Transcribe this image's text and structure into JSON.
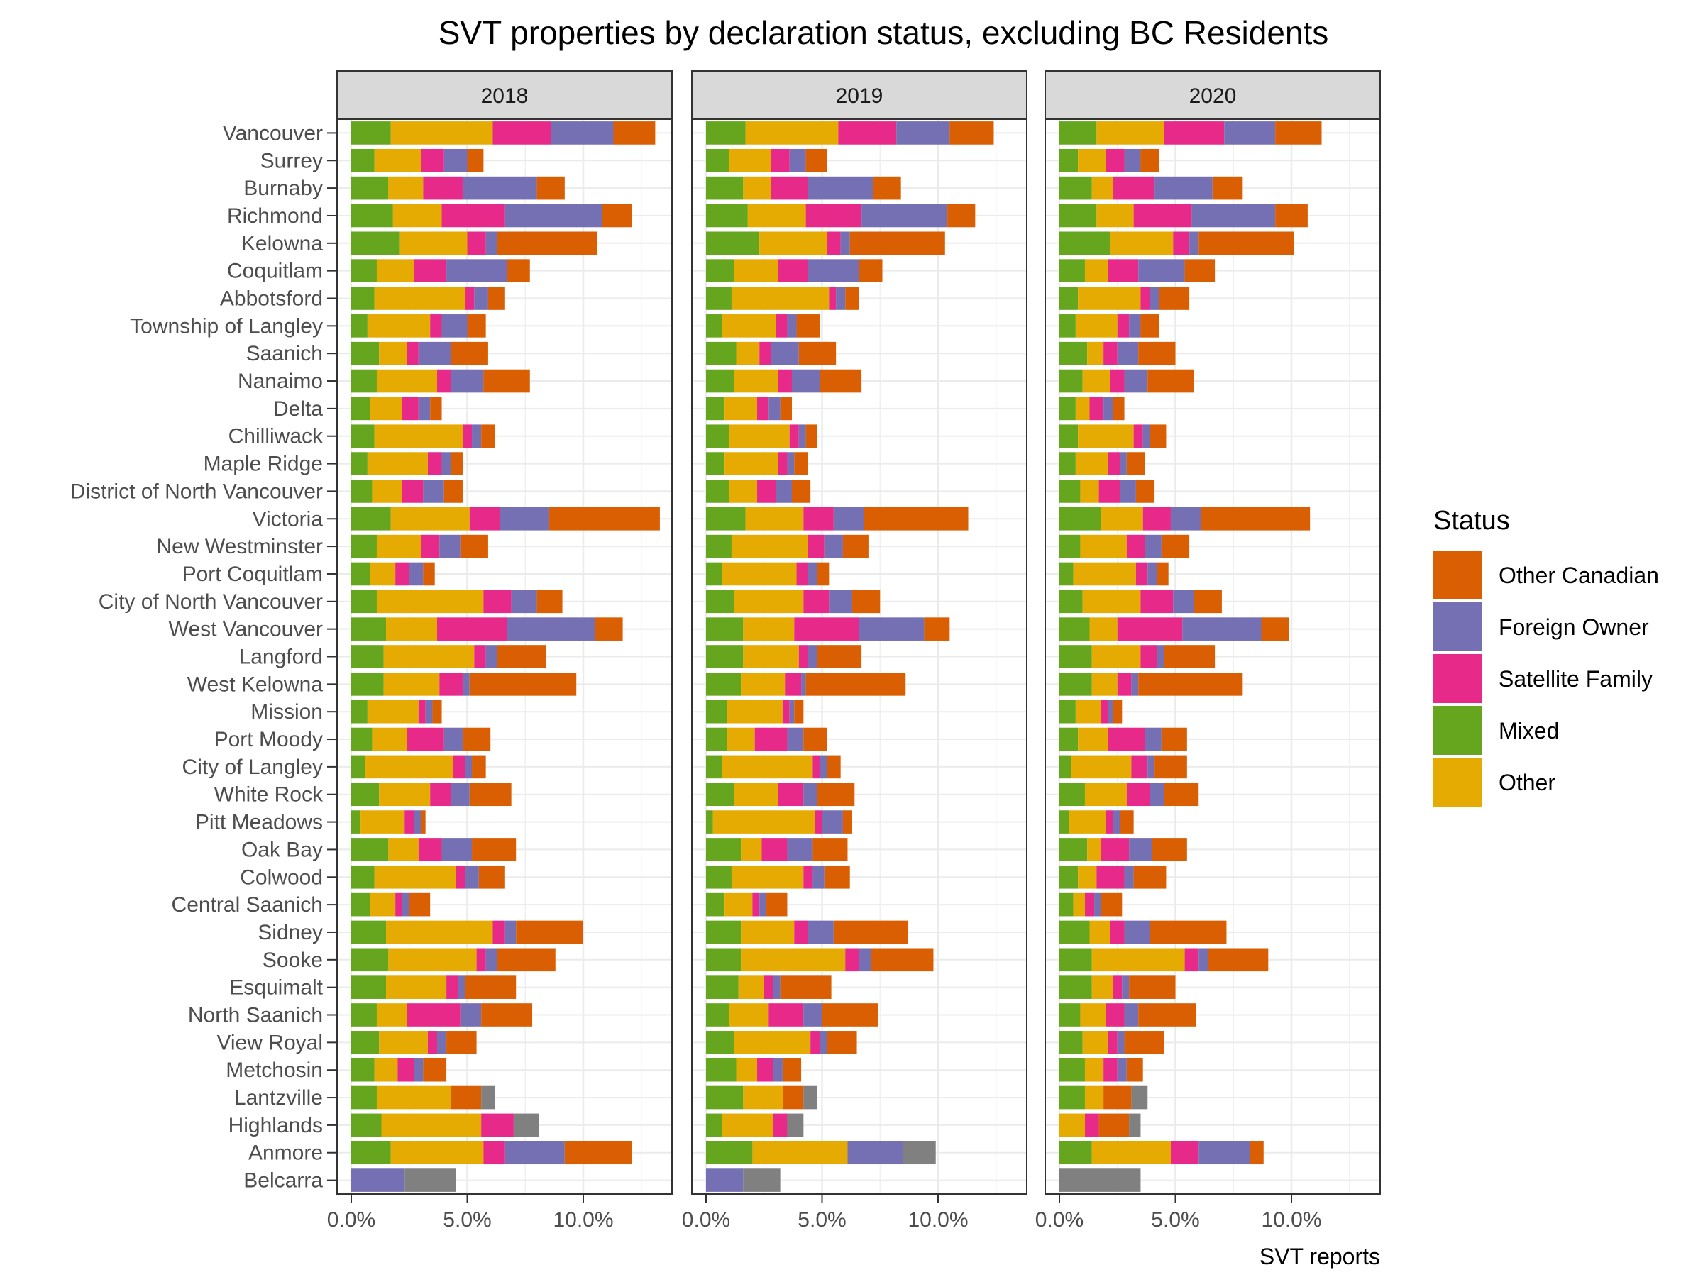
{
  "chart_data": {
    "type": "bar",
    "orientation": "horizontal",
    "stacked": true,
    "title": "SVT properties by declaration status, excluding BC Residents",
    "xlabel": "SVT reports",
    "ylabel": "",
    "xlim": [
      0,
      13.5
    ],
    "x_ticks": [
      0,
      5,
      10
    ],
    "x_tick_labels": [
      "0.0%",
      "5.0%",
      "10.0%"
    ],
    "grid": true,
    "legend": {
      "title": "Status",
      "position": "right",
      "entries": [
        "Other Canadian",
        "Foreign Owner",
        "Satellite Family",
        "Mixed",
        "Other"
      ]
    },
    "colors": {
      "Mixed": "#66a61e",
      "Other": "#e6ab02",
      "Satellite Family": "#e7298a",
      "Foreign Owner": "#7570b3",
      "Other Canadian": "#d95f02",
      "Unlabeled": "#808080"
    },
    "stack_order": [
      "Mixed",
      "Other",
      "Satellite Family",
      "Foreign Owner",
      "Other Canadian",
      "Unlabeled"
    ],
    "facets": [
      "2018",
      "2019",
      "2020"
    ],
    "categories": [
      "Vancouver",
      "Surrey",
      "Burnaby",
      "Richmond",
      "Kelowna",
      "Coquitlam",
      "Abbotsford",
      "Township of Langley",
      "Saanich",
      "Nanaimo",
      "Delta",
      "Chilliwack",
      "Maple Ridge",
      "District of North Vancouver",
      "Victoria",
      "New Westminster",
      "Port Coquitlam",
      "City of North Vancouver",
      "West Vancouver",
      "Langford",
      "West Kelowna",
      "Mission",
      "Port Moody",
      "City of Langley",
      "White Rock",
      "Pitt Meadows",
      "Oak Bay",
      "Colwood",
      "Central Saanich",
      "Sidney",
      "Sooke",
      "Esquimalt",
      "North Saanich",
      "View Royal",
      "Metchosin",
      "Lantzville",
      "Highlands",
      "Anmore",
      "Belcarra"
    ],
    "series_note": "Each row: [Mixed, Other, Satellite Family, Foreign Owner, Other Canadian, Unlabeled] in percent",
    "values": {
      "2018": [
        [
          1.7,
          4.4,
          2.5,
          2.7,
          1.8,
          0
        ],
        [
          1.0,
          2.0,
          1.0,
          1.0,
          0.7,
          0
        ],
        [
          1.6,
          1.5,
          1.7,
          3.2,
          1.2,
          0
        ],
        [
          1.8,
          2.1,
          2.7,
          4.2,
          1.3,
          0
        ],
        [
          2.1,
          2.9,
          0.8,
          0.5,
          4.3,
          0
        ],
        [
          1.1,
          1.6,
          1.4,
          2.6,
          1.0,
          0
        ],
        [
          1.0,
          3.9,
          0.4,
          0.6,
          0.7,
          0
        ],
        [
          0.7,
          2.7,
          0.5,
          1.1,
          0.8,
          0
        ],
        [
          1.2,
          1.2,
          0.5,
          1.4,
          1.6,
          0
        ],
        [
          1.1,
          2.6,
          0.6,
          1.4,
          2.0,
          0
        ],
        [
          0.8,
          1.4,
          0.7,
          0.5,
          0.5,
          0
        ],
        [
          1.0,
          3.8,
          0.4,
          0.4,
          0.6,
          0
        ],
        [
          0.7,
          2.6,
          0.6,
          0.4,
          0.5,
          0
        ],
        [
          0.9,
          1.3,
          0.9,
          0.9,
          0.8,
          0
        ],
        [
          1.7,
          3.4,
          1.3,
          2.1,
          4.8,
          0
        ],
        [
          1.1,
          1.9,
          0.8,
          0.9,
          1.2,
          0
        ],
        [
          0.8,
          1.1,
          0.6,
          0.6,
          0.5,
          0
        ],
        [
          1.1,
          4.6,
          1.2,
          1.1,
          1.1,
          0
        ],
        [
          1.5,
          2.2,
          3.0,
          3.8,
          1.2,
          0
        ],
        [
          1.4,
          3.9,
          0.5,
          0.5,
          2.1,
          0
        ],
        [
          1.4,
          2.4,
          1.0,
          0.3,
          4.6,
          0
        ],
        [
          0.7,
          2.2,
          0.3,
          0.3,
          0.4,
          0
        ],
        [
          0.9,
          1.5,
          1.6,
          0.8,
          1.2,
          0
        ],
        [
          0.6,
          3.8,
          0.5,
          0.3,
          0.6,
          0
        ],
        [
          1.2,
          2.2,
          0.9,
          0.8,
          1.8,
          0
        ],
        [
          0.4,
          1.9,
          0.4,
          0.3,
          0.2,
          0
        ],
        [
          1.6,
          1.3,
          1.0,
          1.3,
          1.9,
          0
        ],
        [
          1.0,
          3.5,
          0.4,
          0.6,
          1.1,
          0
        ],
        [
          0.8,
          1.1,
          0.3,
          0.3,
          0.9,
          0
        ],
        [
          1.5,
          4.6,
          0.5,
          0.5,
          2.9,
          0
        ],
        [
          1.6,
          3.8,
          0.4,
          0.5,
          2.5,
          0
        ],
        [
          1.5,
          2.6,
          0.5,
          0.3,
          2.2,
          0
        ],
        [
          1.1,
          1.3,
          2.3,
          0.9,
          2.2,
          0
        ],
        [
          1.2,
          2.1,
          0.4,
          0.4,
          1.3,
          0
        ],
        [
          1.0,
          1.0,
          0.7,
          0.4,
          1.0,
          0
        ],
        [
          1.1,
          3.2,
          0,
          0,
          1.3,
          0.6
        ],
        [
          1.3,
          4.3,
          1.4,
          0,
          0,
          1.1
        ],
        [
          1.7,
          4.0,
          0.9,
          2.6,
          2.9,
          0
        ],
        [
          0,
          0,
          0,
          2.3,
          0,
          2.2
        ]
      ],
      "2019": [
        [
          1.7,
          4.0,
          2.5,
          2.3,
          1.9,
          0
        ],
        [
          1.0,
          1.8,
          0.8,
          0.7,
          0.9,
          0
        ],
        [
          1.6,
          1.2,
          1.6,
          2.8,
          1.2,
          0
        ],
        [
          1.8,
          2.5,
          2.4,
          3.7,
          1.2,
          0
        ],
        [
          2.3,
          2.9,
          0.6,
          0.4,
          4.1,
          0
        ],
        [
          1.2,
          1.9,
          1.3,
          2.2,
          1.0,
          0
        ],
        [
          1.1,
          4.2,
          0.3,
          0.4,
          0.6,
          0
        ],
        [
          0.7,
          2.3,
          0.5,
          0.4,
          1.0,
          0
        ],
        [
          1.3,
          1.0,
          0.5,
          1.2,
          1.6,
          0
        ],
        [
          1.2,
          1.9,
          0.6,
          1.2,
          1.8,
          0
        ],
        [
          0.8,
          1.4,
          0.5,
          0.5,
          0.5,
          0
        ],
        [
          1.0,
          2.6,
          0.4,
          0.3,
          0.5,
          0
        ],
        [
          0.8,
          2.3,
          0.4,
          0.3,
          0.6,
          0
        ],
        [
          1.0,
          1.2,
          0.8,
          0.7,
          0.8,
          0
        ],
        [
          1.7,
          2.5,
          1.3,
          1.3,
          4.5,
          0
        ],
        [
          1.1,
          3.3,
          0.7,
          0.8,
          1.1,
          0
        ],
        [
          0.7,
          3.2,
          0.5,
          0.4,
          0.5,
          0
        ],
        [
          1.2,
          3.0,
          1.1,
          1.0,
          1.2,
          0
        ],
        [
          1.6,
          2.2,
          2.8,
          2.8,
          1.1,
          0
        ],
        [
          1.6,
          2.4,
          0.4,
          0.4,
          1.9,
          0
        ],
        [
          1.5,
          1.9,
          0.7,
          0.2,
          4.3,
          0
        ],
        [
          0.9,
          2.4,
          0.3,
          0.2,
          0.4,
          0
        ],
        [
          0.9,
          1.2,
          1.4,
          0.7,
          1.0,
          0
        ],
        [
          0.7,
          3.9,
          0.3,
          0.3,
          0.6,
          0
        ],
        [
          1.2,
          1.9,
          1.1,
          0.6,
          1.6,
          0
        ],
        [
          0.3,
          4.4,
          0.3,
          0.9,
          0.4,
          0
        ],
        [
          1.5,
          0.9,
          1.1,
          1.1,
          1.5,
          0
        ],
        [
          1.1,
          3.1,
          0.4,
          0.5,
          1.1,
          0
        ],
        [
          0.8,
          1.2,
          0.3,
          0.3,
          0.9,
          0
        ],
        [
          1.5,
          2.3,
          0.6,
          1.1,
          3.2,
          0
        ],
        [
          1.5,
          4.5,
          0.6,
          0.5,
          2.7,
          0
        ],
        [
          1.4,
          1.1,
          0.4,
          0.3,
          2.2,
          0
        ],
        [
          1.0,
          1.7,
          1.5,
          0.8,
          2.4,
          0
        ],
        [
          1.2,
          3.3,
          0.4,
          0.3,
          1.3,
          0
        ],
        [
          1.3,
          0.9,
          0.7,
          0.4,
          0.8,
          0
        ],
        [
          1.6,
          1.7,
          0,
          0,
          0.9,
          0.6
        ],
        [
          0.7,
          2.2,
          0.6,
          0,
          0,
          0.7
        ],
        [
          2.0,
          4.1,
          0,
          2.4,
          0,
          1.4
        ],
        [
          0,
          0,
          0,
          1.6,
          0,
          1.6
        ]
      ],
      "2020": [
        [
          1.6,
          2.9,
          2.6,
          2.2,
          2.0,
          0
        ],
        [
          0.8,
          1.2,
          0.8,
          0.7,
          0.8,
          0
        ],
        [
          1.4,
          0.9,
          1.8,
          2.5,
          1.3,
          0
        ],
        [
          1.6,
          1.6,
          2.5,
          3.6,
          1.4,
          0
        ],
        [
          2.2,
          2.7,
          0.7,
          0.4,
          4.1,
          0
        ],
        [
          1.1,
          1.0,
          1.3,
          2.0,
          1.3,
          0
        ],
        [
          0.8,
          2.7,
          0.4,
          0.4,
          1.3,
          0
        ],
        [
          0.7,
          1.8,
          0.5,
          0.5,
          0.8,
          0
        ],
        [
          1.2,
          0.7,
          0.6,
          0.9,
          1.6,
          0
        ],
        [
          1.0,
          1.2,
          0.6,
          1.0,
          2.0,
          0
        ],
        [
          0.7,
          0.6,
          0.6,
          0.4,
          0.5,
          0
        ],
        [
          0.8,
          2.4,
          0.4,
          0.3,
          0.7,
          0
        ],
        [
          0.7,
          1.4,
          0.5,
          0.3,
          0.8,
          0
        ],
        [
          0.9,
          0.8,
          0.9,
          0.7,
          0.8,
          0
        ],
        [
          1.8,
          1.8,
          1.2,
          1.3,
          4.7,
          0
        ],
        [
          0.9,
          2.0,
          0.8,
          0.7,
          1.2,
          0
        ],
        [
          0.6,
          2.7,
          0.5,
          0.4,
          0.5,
          0
        ],
        [
          1.0,
          2.5,
          1.4,
          0.9,
          1.2,
          0
        ],
        [
          1.3,
          1.2,
          2.8,
          3.4,
          1.2,
          0
        ],
        [
          1.4,
          2.1,
          0.7,
          0.3,
          2.2,
          0
        ],
        [
          1.4,
          1.1,
          0.6,
          0.3,
          4.5,
          0
        ],
        [
          0.7,
          1.1,
          0.3,
          0.2,
          0.4,
          0
        ],
        [
          0.8,
          1.3,
          1.6,
          0.7,
          1.1,
          0
        ],
        [
          0.5,
          2.6,
          0.7,
          0.3,
          1.4,
          0
        ],
        [
          1.1,
          1.8,
          1.0,
          0.6,
          1.5,
          0
        ],
        [
          0.4,
          1.6,
          0.3,
          0.3,
          0.6,
          0
        ],
        [
          1.2,
          0.6,
          1.2,
          1.0,
          1.5,
          0
        ],
        [
          0.8,
          0.8,
          1.2,
          0.4,
          1.4,
          0
        ],
        [
          0.6,
          0.5,
          0.4,
          0.3,
          0.9,
          0
        ],
        [
          1.3,
          0.9,
          0.6,
          1.1,
          3.3,
          0
        ],
        [
          1.4,
          4.0,
          0.6,
          0.4,
          2.6,
          0
        ],
        [
          1.4,
          0.9,
          0.4,
          0.3,
          2.0,
          0
        ],
        [
          0.9,
          1.1,
          0.8,
          0.6,
          2.5,
          0
        ],
        [
          1.0,
          1.1,
          0.4,
          0.3,
          1.7,
          0
        ],
        [
          1.1,
          0.8,
          0.6,
          0.4,
          0.7,
          0
        ],
        [
          1.1,
          0.8,
          0,
          0,
          1.2,
          0.7
        ],
        [
          0,
          1.1,
          0.6,
          0,
          1.3,
          0.5
        ],
        [
          1.4,
          3.4,
          1.2,
          2.2,
          0.6,
          0
        ],
        [
          0,
          0,
          0,
          0,
          0,
          3.5
        ]
      ]
    }
  }
}
